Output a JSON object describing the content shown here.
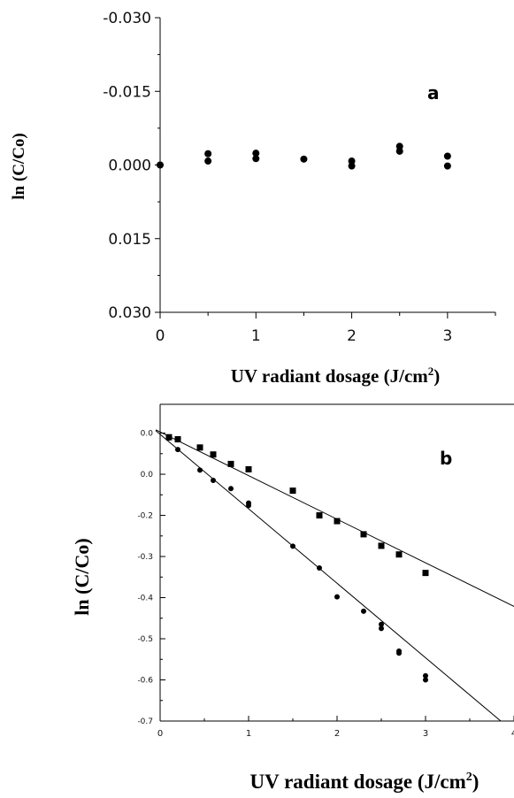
{
  "chart_data": [
    {
      "type": "scatter",
      "panel_label": "a",
      "xlabel": "UV radiant dosage (J/cm",
      "xlabel_sup": "2",
      "xlabel_close": ")",
      "ylabel": "ln (C/Co)",
      "x_ticks": [
        "0",
        "1",
        "2",
        "3"
      ],
      "y_ticks": [
        "-0.030",
        "-0.015",
        "0.000",
        "0.015",
        "0.030"
      ],
      "xlim": [
        0,
        3.5
      ],
      "ylim": [
        -0.03,
        0.03
      ],
      "y_inverted": true,
      "grid": false,
      "series": [
        {
          "marker": "circle",
          "x": [
            0,
            0.5,
            0.5,
            1,
            1,
            1.5,
            2,
            2,
            2.5,
            2.5,
            3,
            3
          ],
          "y": [
            0.0,
            -0.0023,
            -0.0008,
            -0.0024,
            -0.0013,
            -0.0012,
            -0.0008,
            0.0002,
            -0.0038,
            -0.0028,
            -0.0018,
            0.0002
          ]
        }
      ]
    },
    {
      "type": "scatter",
      "panel_label": "b",
      "xlabel": "UV radiant dosage (J/cm",
      "xlabel_sup": "2",
      "xlabel_close": ")",
      "ylabel": "ln (C/Co)",
      "x_ticks": [
        "0",
        "1",
        "2",
        "3",
        "4"
      ],
      "y_ticks": [
        "0.0",
        "0.0",
        "-0.2",
        "-0.3",
        "-0.4",
        "-0.5",
        "-0.6",
        "-0.7"
      ],
      "xlim": [
        0,
        4
      ],
      "ylim": [
        -0.7,
        0.0
      ],
      "grid": false,
      "series": [
        {
          "marker": "square",
          "x": [
            0.1,
            0.2,
            0.45,
            0.6,
            0.8,
            1.0,
            1.5,
            1.8,
            2.0,
            2.3,
            2.5,
            2.7,
            3.0
          ],
          "y": [
            -0.01,
            -0.015,
            -0.035,
            -0.052,
            -0.075,
            -0.088,
            -0.14,
            -0.2,
            -0.214,
            -0.246,
            -0.274,
            -0.295,
            -0.34
          ],
          "fit": {
            "x": [
              -0.05,
              4.05
            ],
            "y": [
              0.008,
              -0.4267
            ]
          }
        },
        {
          "marker": "circle",
          "x": [
            0.1,
            0.2,
            0.45,
            0.6,
            0.8,
            1.0,
            1.0,
            1.5,
            1.8,
            2.0,
            2.3,
            2.5,
            2.5,
            2.7,
            2.7,
            3.0,
            3.0
          ],
          "y": [
            -0.012,
            -0.04,
            -0.09,
            -0.115,
            -0.135,
            -0.176,
            -0.17,
            -0.275,
            -0.328,
            -0.398,
            -0.433,
            -0.465,
            -0.475,
            -0.535,
            -0.53,
            -0.59,
            -0.6
          ],
          "fit": {
            "x": [
              -0.05,
              3.85
            ],
            "y": [
              0.006,
              -0.7
            ]
          }
        }
      ]
    }
  ]
}
